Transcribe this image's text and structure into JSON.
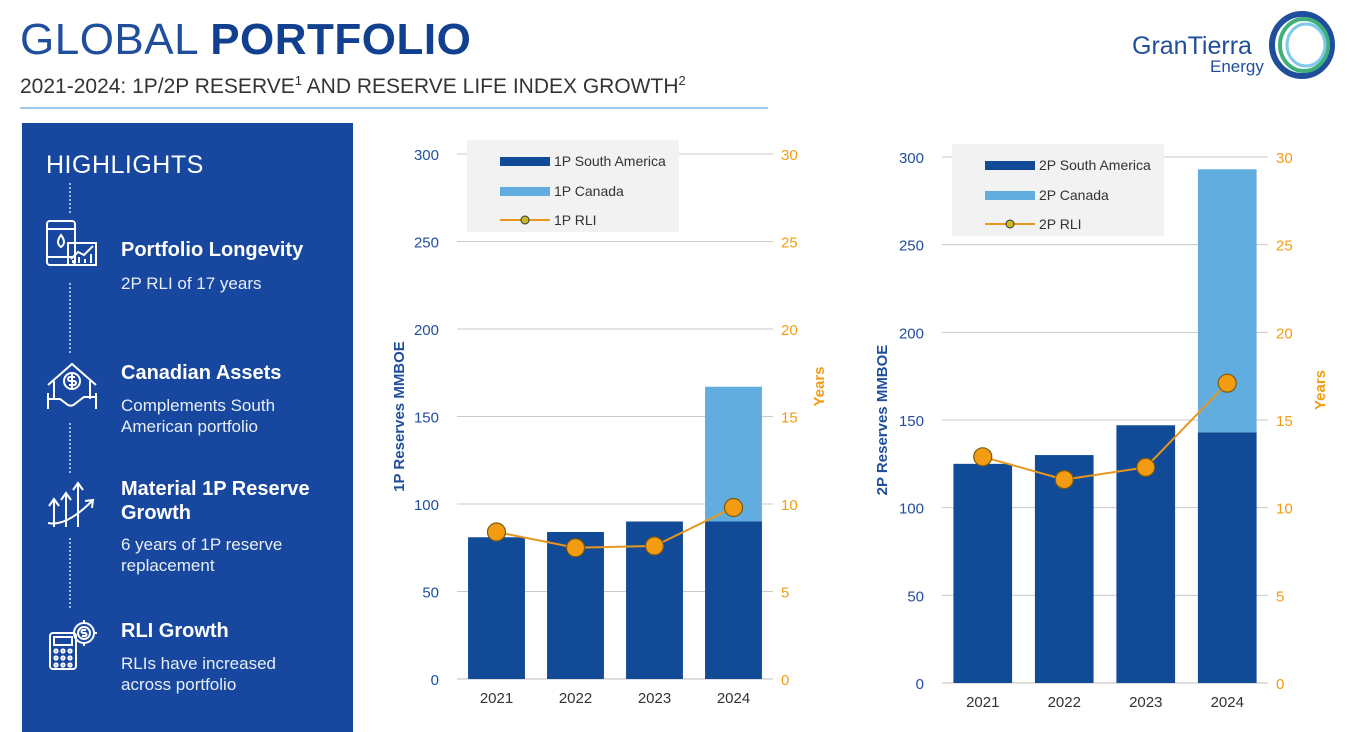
{
  "header": {
    "title_light": "GLOBAL ",
    "title_bold": "PORTFOLIO",
    "subtitle_main": "2021-2024: 1P/2P RESERVE",
    "subtitle_sup1": "1",
    "subtitle_mid": " AND RESERVE LIFE INDEX GROWTH",
    "subtitle_sup2": "2"
  },
  "logo": {
    "name": "GranTierra",
    "sub": "Energy"
  },
  "highlights": {
    "heading": "HIGHLIGHTS",
    "items": [
      {
        "title": "Portfolio Longevity",
        "desc": "2P RLI of 17 years",
        "icon": "oil-barrel-chart-icon"
      },
      {
        "title": "Canadian Assets",
        "desc": "Complements South American portfolio",
        "icon": "house-dollar-handshake-icon"
      },
      {
        "title": "Material 1P Reserve Growth",
        "desc": "6 years of 1P reserve replacement",
        "icon": "growth-arrows-icon"
      },
      {
        "title": "RLI Growth",
        "desc": "RLIs have increased across portfolio",
        "icon": "calculator-gear-icon"
      }
    ]
  },
  "colors": {
    "dark_blue": "#114a96",
    "light_blue": "#62ade0",
    "orange": "#f39c12",
    "rli_line": "#e8961e",
    "axis_blue": "#1f4e9c",
    "panel_blue": "#17479e"
  },
  "chart_data": [
    {
      "type": "bar",
      "stacked": true,
      "categories": [
        "2021",
        "2022",
        "2023",
        "2024"
      ],
      "series": [
        {
          "name": "1P South America",
          "values": [
            81,
            84,
            90,
            90
          ]
        },
        {
          "name": "1P Canada",
          "values": [
            0,
            0,
            0,
            77
          ]
        }
      ],
      "line_series": {
        "name": "1P RLI",
        "values": [
          8.4,
          7.5,
          7.6,
          9.8
        ],
        "axis": "right"
      },
      "ylabel": "1P  Reserves MMBOE",
      "y2label": "Years",
      "ylim": [
        0,
        300
      ],
      "y2lim": [
        0,
        30
      ],
      "yticks": [
        "0",
        "50",
        "100",
        "150",
        "200",
        "250",
        "300"
      ],
      "y2ticks": [
        "0",
        "5",
        "10",
        "15",
        "20",
        "25",
        "30"
      ],
      "legend": [
        "1P South America",
        "1P Canada",
        "1P RLI"
      ],
      "legend_position": "top-left",
      "grid": true
    },
    {
      "type": "bar",
      "stacked": true,
      "categories": [
        "2021",
        "2022",
        "2023",
        "2024"
      ],
      "series": [
        {
          "name": "2P  South America",
          "values": [
            125,
            130,
            147,
            143
          ]
        },
        {
          "name": "2P Canada",
          "values": [
            0,
            0,
            0,
            150
          ]
        }
      ],
      "line_series": {
        "name": "2P RLI",
        "values": [
          12.9,
          11.6,
          12.3,
          17.1
        ],
        "axis": "right"
      },
      "ylabel": "2P Reserves MMBOE",
      "y2label": "Years",
      "ylim": [
        0,
        300
      ],
      "y2lim": [
        0,
        30
      ],
      "yticks": [
        "0",
        "50",
        "100",
        "150",
        "200",
        "250",
        "300"
      ],
      "y2ticks": [
        "0",
        "5",
        "10",
        "15",
        "20",
        "25",
        "30"
      ],
      "legend": [
        "2P  South America",
        "2P Canada",
        "2P RLI"
      ],
      "legend_position": "top-left",
      "grid": true
    }
  ]
}
